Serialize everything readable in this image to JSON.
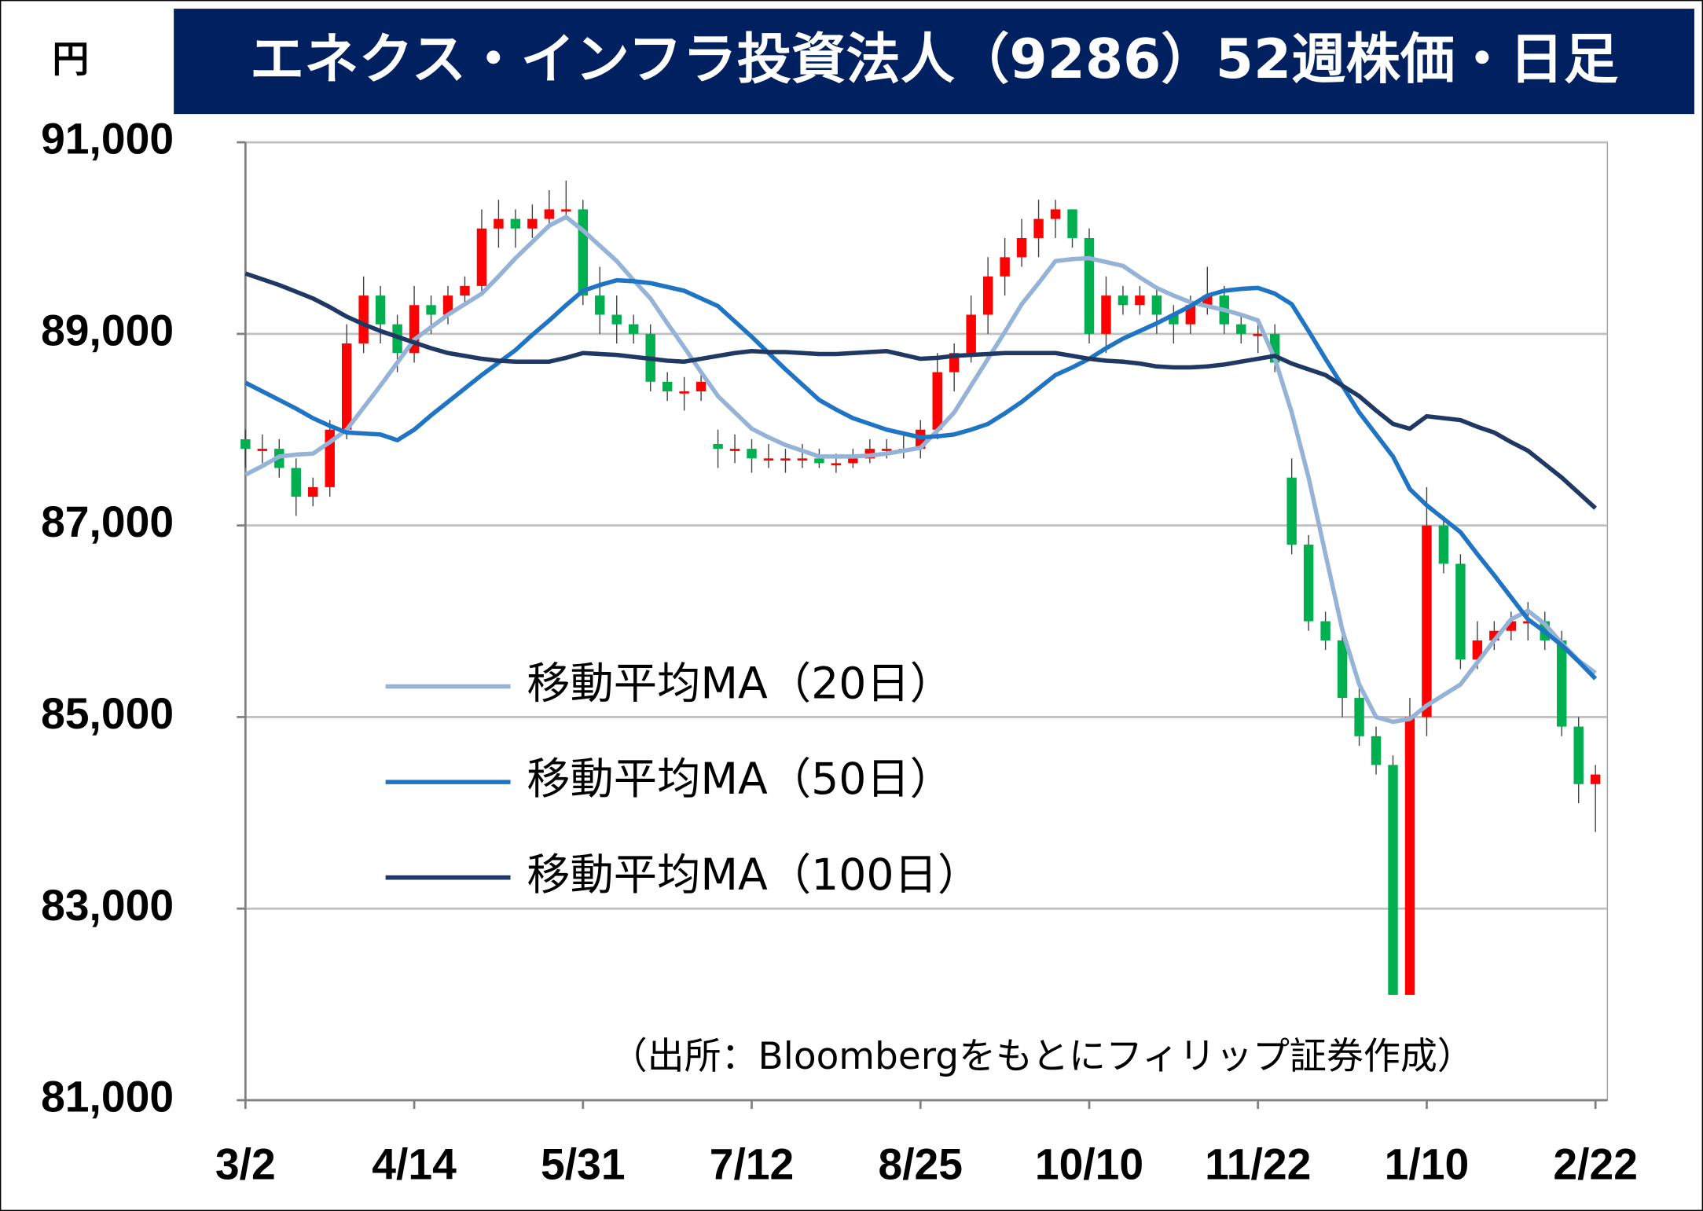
{
  "chart_data": {
    "type": "candlestick",
    "title": "エネクス・インフラ投資法人（9286）52週株価・日足",
    "y_unit": "円",
    "note": "（出所：Bloombergをもとにフィリップ証券作成）",
    "categories": [
      "3/2",
      null,
      null,
      null,
      null,
      null,
      null,
      null,
      null,
      null,
      "4/14",
      null,
      null,
      null,
      null,
      null,
      null,
      null,
      null,
      null,
      "5/31",
      null,
      null,
      null,
      null,
      null,
      null,
      null,
      null,
      null,
      "7/12",
      null,
      null,
      null,
      null,
      null,
      null,
      null,
      null,
      null,
      "8/25",
      null,
      null,
      null,
      null,
      null,
      null,
      null,
      null,
      null,
      "10/10",
      null,
      null,
      null,
      null,
      null,
      null,
      null,
      null,
      null,
      "11/22",
      null,
      null,
      null,
      null,
      null,
      null,
      null,
      null,
      null,
      "1/10",
      null,
      null,
      null,
      null,
      null,
      null,
      null,
      null,
      null,
      "2/22"
    ],
    "open": [
      87900,
      87800,
      87800,
      87600,
      87300,
      87400,
      88000,
      88900,
      89400,
      89100,
      88800,
      89300,
      89200,
      89400,
      89500,
      90100,
      90200,
      90100,
      90200,
      90300,
      90300,
      89400,
      89200,
      89100,
      89000,
      88500,
      88400,
      88400,
      87850,
      87800,
      87800,
      87700,
      87700,
      87700,
      87700,
      87650,
      87650,
      87700,
      87800,
      87800,
      87800,
      88000,
      88600,
      88800,
      89200,
      89600,
      89800,
      90000,
      90200,
      90300,
      90000,
      89000,
      89400,
      89300,
      89400,
      89200,
      89100,
      89300,
      89400,
      89100,
      89000,
      89000,
      87500,
      86800,
      86000,
      85800,
      85200,
      84800,
      84500,
      82100,
      85000,
      87000,
      86600,
      85600,
      85800,
      85900,
      86000,
      86000,
      85800,
      84900,
      84300
    ],
    "high": [
      88000,
      87950,
      87900,
      87700,
      87500,
      88100,
      89100,
      89600,
      89500,
      89200,
      89500,
      89400,
      89500,
      89600,
      90300,
      90400,
      90300,
      90350,
      90500,
      90600,
      90400,
      89700,
      89400,
      89200,
      89100,
      88600,
      88550,
      88600,
      88000,
      87950,
      87900,
      87850,
      87800,
      87850,
      87800,
      87750,
      87800,
      87900,
      87900,
      87950,
      88100,
      88800,
      88900,
      89400,
      89800,
      90000,
      90200,
      90400,
      90400,
      90300,
      90100,
      89600,
      89500,
      89500,
      89500,
      89300,
      89400,
      89700,
      89500,
      89200,
      89100,
      89100,
      87700,
      86900,
      86100,
      85900,
      85400,
      84900,
      84600,
      85200,
      87400,
      87100,
      86700,
      86000,
      86000,
      86100,
      86200,
      86100,
      85900,
      85000,
      84500
    ],
    "low": [
      87600,
      87650,
      87500,
      87100,
      87200,
      87300,
      87900,
      88800,
      88900,
      88600,
      88700,
      89000,
      89100,
      89300,
      89400,
      89900,
      89900,
      90000,
      90100,
      90200,
      89300,
      89000,
      88900,
      88900,
      88400,
      88300,
      88200,
      88300,
      87600,
      87650,
      87550,
      87600,
      87550,
      87600,
      87600,
      87550,
      87600,
      87650,
      87700,
      87700,
      87700,
      87900,
      88400,
      88700,
      89000,
      89400,
      89700,
      89800,
      90000,
      89900,
      88900,
      88800,
      89200,
      89200,
      89000,
      88900,
      89000,
      89200,
      89000,
      88900,
      88800,
      88600,
      86700,
      85900,
      85700,
      85000,
      84700,
      84400,
      82100,
      82100,
      84800,
      86500,
      85500,
      85500,
      85700,
      85800,
      85800,
      85700,
      84800,
      84100,
      83800
    ],
    "close": [
      87800,
      87800,
      87600,
      87300,
      87400,
      88000,
      88900,
      89400,
      89100,
      88800,
      89300,
      89200,
      89400,
      89500,
      90100,
      90200,
      90100,
      90200,
      90300,
      90300,
      89400,
      89200,
      89100,
      89000,
      88500,
      88400,
      88400,
      88500,
      87800,
      87800,
      87700,
      87700,
      87700,
      87700,
      87650,
      87650,
      87700,
      87800,
      87800,
      87800,
      88000,
      88600,
      88800,
      89200,
      89600,
      89800,
      90000,
      90200,
      90300,
      90000,
      89000,
      89400,
      89300,
      89400,
      89200,
      89100,
      89300,
      89400,
      89100,
      89000,
      89000,
      88700,
      86800,
      86000,
      85800,
      85200,
      84800,
      84500,
      82100,
      85000,
      87000,
      86600,
      85600,
      85800,
      85900,
      86000,
      86000,
      85800,
      84900,
      84300,
      84400
    ],
    "up_color": "#ff0000",
    "down_color": "#00b050",
    "series": [
      {
        "name": "移動平均MA（20日）",
        "color": "#95b3d7",
        "values": [
          87530,
          87620,
          87720,
          87740,
          87750,
          87870,
          88000,
          88230,
          88460,
          88700,
          88940,
          89070,
          89200,
          89310,
          89420,
          89600,
          89790,
          89960,
          90130,
          90220,
          90080,
          89920,
          89760,
          89560,
          89370,
          89110,
          88860,
          88600,
          88350,
          88180,
          88010,
          87920,
          87840,
          87780,
          87720,
          87720,
          87720,
          87730,
          87750,
          87780,
          87810,
          87990,
          88180,
          88460,
          88740,
          89020,
          89310,
          89530,
          89760,
          89780,
          89790,
          89750,
          89710,
          89590,
          89480,
          89400,
          89330,
          89290,
          89250,
          89200,
          89140,
          88740,
          88180,
          87500,
          86700,
          85910,
          85340,
          85000,
          84950,
          84980,
          85120,
          85230,
          85340,
          85570,
          85800,
          86020,
          86110,
          85970,
          85770,
          85590,
          85460
        ]
      },
      {
        "name": "移動平均MA（50日）",
        "color": "#1f74c4",
        "values": [
          88490,
          88400,
          88310,
          88220,
          88120,
          88040,
          87970,
          87960,
          87950,
          87890,
          88000,
          88150,
          88290,
          88430,
          88570,
          88700,
          88830,
          88990,
          89140,
          89300,
          89450,
          89510,
          89560,
          89550,
          89530,
          89490,
          89450,
          89370,
          89290,
          89130,
          88970,
          88800,
          88630,
          88470,
          88310,
          88210,
          88120,
          88060,
          88000,
          87960,
          87920,
          87930,
          87950,
          88000,
          88060,
          88170,
          88290,
          88430,
          88570,
          88650,
          88740,
          88850,
          88950,
          89030,
          89110,
          89200,
          89290,
          89400,
          89450,
          89470,
          89480,
          89420,
          89310,
          89030,
          88740,
          88460,
          88180,
          87950,
          87720,
          87380,
          87210,
          87070,
          86930,
          86700,
          86480,
          86250,
          86020,
          85890,
          85750,
          85580,
          85400
        ]
      },
      {
        "name": "移動平均MA（100日）",
        "color": "#1f3864",
        "values": [
          89630,
          89570,
          89510,
          89440,
          89370,
          89280,
          89180,
          89100,
          89030,
          88970,
          88910,
          88850,
          88800,
          88770,
          88740,
          88720,
          88710,
          88710,
          88710,
          88750,
          88800,
          88790,
          88780,
          88760,
          88740,
          88720,
          88710,
          88740,
          88770,
          88800,
          88820,
          88810,
          88810,
          88800,
          88790,
          88790,
          88800,
          88810,
          88820,
          88780,
          88740,
          88750,
          88770,
          88780,
          88790,
          88800,
          88800,
          88800,
          88800,
          88770,
          88740,
          88720,
          88710,
          88690,
          88660,
          88650,
          88650,
          88660,
          88680,
          88710,
          88740,
          88770,
          88690,
          88630,
          88570,
          88460,
          88350,
          88200,
          88060,
          88010,
          88140,
          88120,
          88100,
          88030,
          87970,
          87870,
          87780,
          87640,
          87500,
          87340,
          87180
        ]
      }
    ],
    "ylim": [
      81000,
      91000
    ],
    "yticks": [
      {
        "value": 81000,
        "label": "81,000"
      },
      {
        "value": 83000,
        "label": "83,000"
      },
      {
        "value": 85000,
        "label": "85,000"
      },
      {
        "value": 87000,
        "label": "87,000"
      },
      {
        "value": 89000,
        "label": "89,000"
      },
      {
        "value": 91000,
        "label": "91,000"
      }
    ],
    "grid": true,
    "title_background": "#002060"
  }
}
